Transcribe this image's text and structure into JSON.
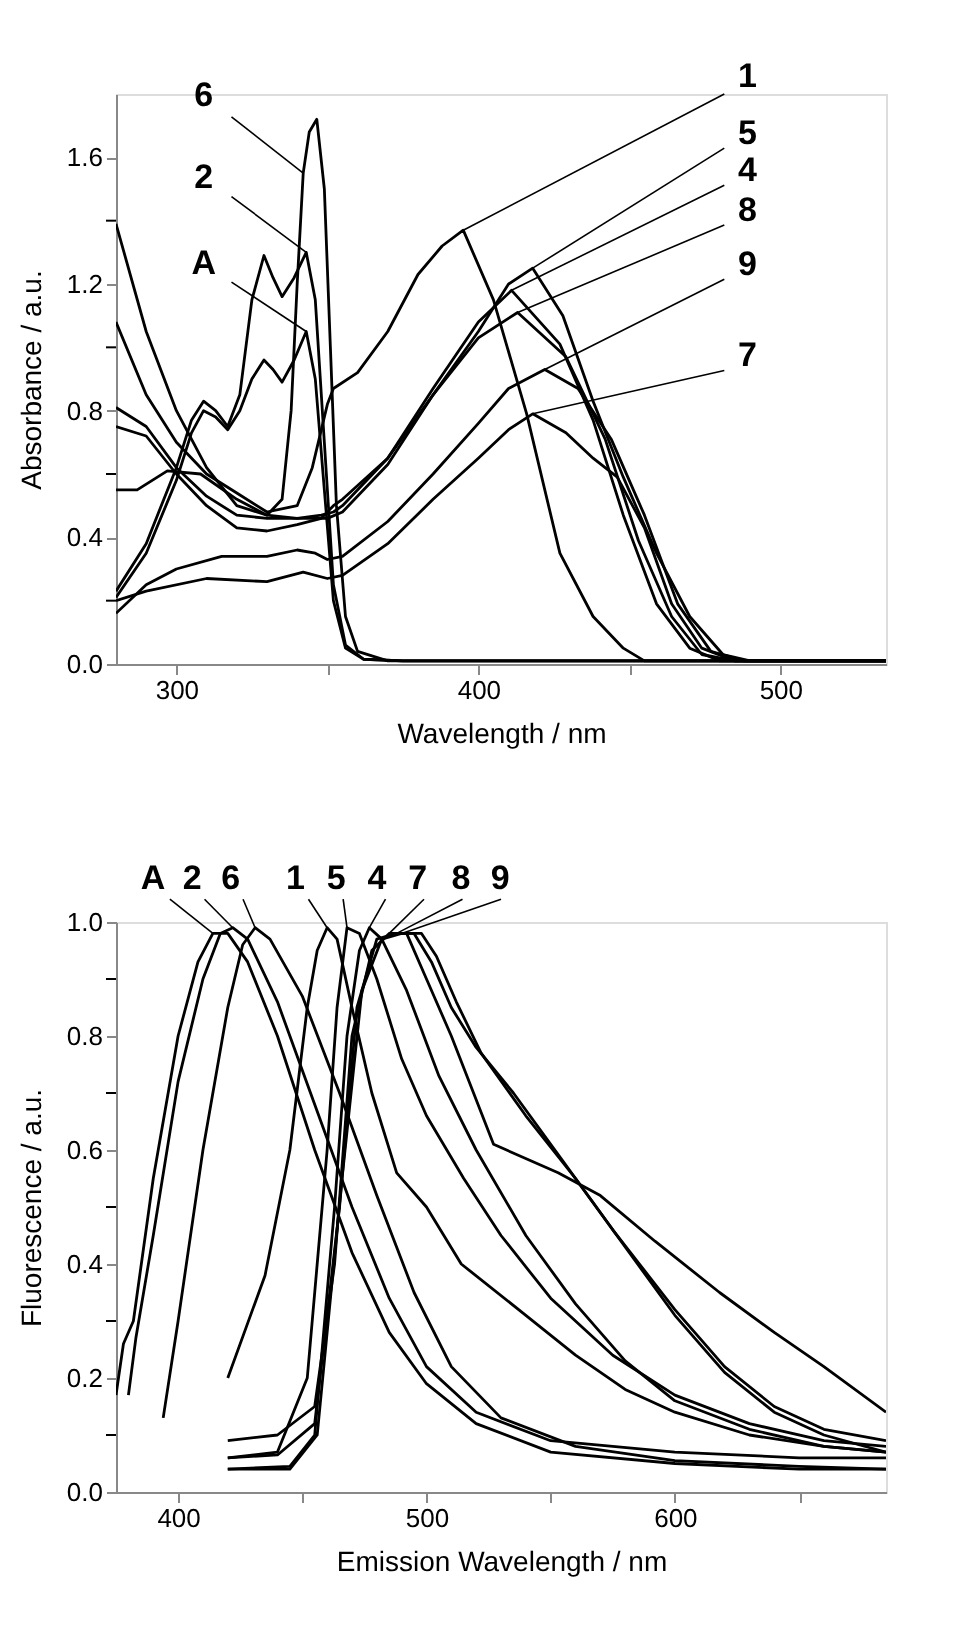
{
  "chart_data": [
    {
      "type": "line",
      "xlabel": "Wavelength / nm",
      "ylabel": "Absorbance / a.u.",
      "xlim": [
        280,
        535
      ],
      "ylim": [
        0,
        1.8
      ],
      "xticks": [
        300,
        {
          "value": 350,
          "label": null
        },
        400,
        {
          "value": 450,
          "label": null
        },
        500
      ],
      "yticks": [
        {
          "value": 0,
          "label": "0.0"
        },
        {
          "value": 0.2,
          "label": null
        },
        0.4,
        {
          "value": 0.6,
          "label": null
        },
        0.8,
        {
          "value": 1.0,
          "label": null
        },
        1.2,
        {
          "value": 1.4,
          "label": null
        },
        1.6
      ],
      "grid": false,
      "legend": false,
      "line_style": "solid",
      "series": [
        {
          "name": "6",
          "color": "#000000",
          "x": [
            280,
            290,
            300,
            310,
            320,
            330,
            335,
            338,
            340,
            342,
            344,
            346.5,
            349,
            351,
            353,
            356,
            360,
            370,
            535
          ],
          "values": [
            1.39,
            1.05,
            0.8,
            0.62,
            0.5,
            0.47,
            0.52,
            0.8,
            1.2,
            1.55,
            1.68,
            1.72,
            1.5,
            1.0,
            0.5,
            0.15,
            0.04,
            0.01,
            0.01
          ]
        },
        {
          "name": "2",
          "color": "#000000",
          "x": [
            280,
            290,
            300,
            305,
            309,
            313,
            317,
            321,
            325,
            329,
            332,
            335,
            339,
            343,
            346,
            349,
            352,
            356,
            362,
            375,
            535
          ],
          "values": [
            0.23,
            0.38,
            0.62,
            0.77,
            0.83,
            0.8,
            0.75,
            0.85,
            1.15,
            1.29,
            1.22,
            1.16,
            1.22,
            1.3,
            1.15,
            0.7,
            0.25,
            0.06,
            0.015,
            0.01,
            0.01
          ]
        },
        {
          "name": "A",
          "color": "#000000",
          "x": [
            280,
            290,
            300,
            305,
            309,
            313,
            317,
            321,
            325,
            329,
            332,
            335,
            339,
            343,
            346,
            349,
            352,
            356,
            362,
            375,
            535
          ],
          "values": [
            0.21,
            0.35,
            0.58,
            0.73,
            0.8,
            0.78,
            0.74,
            0.8,
            0.9,
            0.96,
            0.93,
            0.89,
            0.96,
            1.05,
            0.9,
            0.55,
            0.2,
            0.05,
            0.015,
            0.01,
            0.01
          ]
        },
        {
          "name": "1",
          "color": "#000000",
          "x": [
            280,
            290,
            300,
            310,
            320,
            330,
            340,
            345,
            350,
            352,
            360,
            370,
            380,
            388,
            395,
            405,
            416,
            427,
            438,
            448,
            455,
            535
          ],
          "values": [
            1.08,
            0.85,
            0.7,
            0.6,
            0.54,
            0.48,
            0.5,
            0.62,
            0.82,
            0.87,
            0.92,
            1.05,
            1.23,
            1.32,
            1.37,
            1.15,
            0.79,
            0.35,
            0.15,
            0.05,
            0.01,
            0.01
          ]
        },
        {
          "name": "5",
          "color": "#000000",
          "x": [
            280,
            290,
            300,
            310,
            320,
            330,
            340,
            348,
            352,
            355,
            370,
            385,
            400,
            410,
            418,
            428,
            438,
            448,
            459,
            470,
            481,
            490,
            535
          ],
          "values": [
            0.75,
            0.72,
            0.6,
            0.5,
            0.43,
            0.42,
            0.44,
            0.46,
            0.5,
            0.52,
            0.65,
            0.85,
            1.05,
            1.2,
            1.25,
            1.1,
            0.83,
            0.59,
            0.35,
            0.15,
            0.03,
            0.01,
            0.01
          ]
        },
        {
          "name": "4",
          "color": "#000000",
          "x": [
            280,
            290,
            300,
            310,
            320,
            330,
            340,
            348,
            352,
            355,
            370,
            385,
            400,
            411,
            427,
            438,
            448,
            459,
            470,
            480,
            535
          ],
          "values": [
            0.81,
            0.75,
            0.62,
            0.53,
            0.47,
            0.46,
            0.46,
            0.47,
            0.48,
            0.5,
            0.65,
            0.87,
            1.08,
            1.18,
            1.01,
            0.77,
            0.47,
            0.19,
            0.05,
            0.01,
            0.01
          ]
        },
        {
          "name": "8",
          "color": "#000000",
          "x": [
            280,
            287,
            297,
            308,
            320,
            330,
            340,
            350,
            355,
            370,
            385,
            400,
            413,
            429,
            442,
            453,
            464,
            474,
            485,
            535
          ],
          "values": [
            0.55,
            0.55,
            0.61,
            0.6,
            0.52,
            0.47,
            0.46,
            0.46,
            0.48,
            0.63,
            0.85,
            1.03,
            1.11,
            0.97,
            0.71,
            0.39,
            0.15,
            0.03,
            0.01,
            0.01
          ]
        },
        {
          "name": "9",
          "color": "#000000",
          "x": [
            280,
            290,
            300,
            315,
            330,
            340,
            346,
            350,
            355,
            370,
            385,
            400,
            410,
            422,
            433,
            444,
            455,
            466,
            477,
            488,
            535
          ],
          "values": [
            0.16,
            0.25,
            0.3,
            0.34,
            0.34,
            0.36,
            0.35,
            0.33,
            0.34,
            0.45,
            0.6,
            0.76,
            0.87,
            0.93,
            0.87,
            0.71,
            0.47,
            0.19,
            0.04,
            0.01,
            0.01
          ]
        },
        {
          "name": "7",
          "color": "#000000",
          "x": [
            280,
            290,
            310,
            330,
            342,
            350,
            355,
            370,
            385,
            400,
            410,
            418,
            429,
            438,
            446,
            455,
            464,
            474,
            485,
            535
          ],
          "values": [
            0.2,
            0.23,
            0.27,
            0.26,
            0.29,
            0.27,
            0.28,
            0.38,
            0.52,
            0.65,
            0.74,
            0.79,
            0.73,
            0.65,
            0.59,
            0.43,
            0.19,
            0.05,
            0.01,
            0.01
          ]
        }
      ]
    },
    {
      "type": "line",
      "xlabel": "Emission Wavelength / nm",
      "ylabel": "Fluorescence / a.u.",
      "xlim": [
        375,
        685
      ],
      "ylim": [
        0,
        1.0
      ],
      "xticks": [
        400,
        {
          "value": 450,
          "label": null
        },
        500,
        {
          "value": 550,
          "label": null
        },
        600,
        {
          "value": 650,
          "label": null
        }
      ],
      "yticks": [
        {
          "value": 0,
          "label": "0.0"
        },
        {
          "value": 0.1,
          "label": null
        },
        0.2,
        {
          "value": 0.3,
          "label": null
        },
        0.4,
        {
          "value": 0.5,
          "label": null
        },
        0.6,
        {
          "value": 0.7,
          "label": null
        },
        0.8,
        {
          "value": 0.9,
          "label": null
        },
        {
          "value": 1.0,
          "label": "1.0"
        }
      ],
      "grid": false,
      "legend": false,
      "line_style": "solid",
      "series": [
        {
          "name": "A",
          "color": "#000000",
          "x": [
            375,
            378,
            382,
            390,
            400,
            408,
            414,
            420,
            428,
            440,
            455,
            470,
            485,
            500,
            520,
            550,
            600,
            650,
            685
          ],
          "values": [
            0.17,
            0.26,
            0.3,
            0.55,
            0.8,
            0.93,
            0.98,
            0.98,
            0.93,
            0.8,
            0.6,
            0.42,
            0.28,
            0.19,
            0.12,
            0.07,
            0.05,
            0.04,
            0.04
          ]
        },
        {
          "name": "2",
          "color": "#000000",
          "x": [
            380,
            383,
            390,
            400,
            410,
            417,
            422,
            428,
            440,
            455,
            470,
            485,
            500,
            520,
            550,
            600,
            650,
            685
          ],
          "values": [
            0.17,
            0.27,
            0.45,
            0.72,
            0.9,
            0.98,
            0.99,
            0.97,
            0.86,
            0.68,
            0.5,
            0.34,
            0.22,
            0.14,
            0.09,
            0.07,
            0.06,
            0.06
          ]
        },
        {
          "name": "6",
          "color": "#000000",
          "x": [
            394,
            400,
            410,
            420,
            426,
            431,
            437,
            450,
            465,
            480,
            495,
            510,
            530,
            560,
            600,
            650,
            685
          ],
          "values": [
            0.13,
            0.3,
            0.6,
            0.85,
            0.96,
            0.99,
            0.97,
            0.87,
            0.7,
            0.52,
            0.35,
            0.22,
            0.13,
            0.08,
            0.055,
            0.045,
            0.04
          ]
        },
        {
          "name": "1",
          "color": "#000000",
          "x": [
            420,
            435,
            445,
            452,
            456,
            460,
            464,
            470,
            478,
            488,
            500,
            514,
            540,
            560,
            580,
            600,
            630,
            660,
            685
          ],
          "values": [
            0.2,
            0.38,
            0.6,
            0.85,
            0.95,
            0.99,
            0.97,
            0.85,
            0.7,
            0.56,
            0.5,
            0.4,
            0.31,
            0.24,
            0.18,
            0.14,
            0.1,
            0.08,
            0.07
          ]
        },
        {
          "name": "5",
          "color": "#000000",
          "x": [
            420,
            440,
            452,
            460,
            464,
            468,
            473,
            480,
            490,
            500,
            515,
            530,
            550,
            575,
            600,
            630,
            660,
            685
          ],
          "values": [
            0.06,
            0.07,
            0.2,
            0.6,
            0.85,
            0.99,
            0.98,
            0.9,
            0.76,
            0.66,
            0.55,
            0.45,
            0.34,
            0.24,
            0.17,
            0.12,
            0.09,
            0.08
          ]
        },
        {
          "name": "4",
          "color": "#000000",
          "x": [
            420,
            445,
            455,
            463,
            468,
            473,
            477,
            482,
            492,
            505,
            520,
            540,
            560,
            580,
            600,
            630,
            660,
            685
          ],
          "values": [
            0.04,
            0.045,
            0.1,
            0.5,
            0.8,
            0.95,
            0.99,
            0.97,
            0.88,
            0.73,
            0.6,
            0.45,
            0.33,
            0.23,
            0.16,
            0.11,
            0.08,
            0.07
          ]
        },
        {
          "name": "7",
          "color": "#000000",
          "x": [
            420,
            440,
            455,
            463,
            470,
            478,
            485,
            492,
            500,
            510,
            527,
            553,
            570,
            592,
            618,
            640,
            660,
            685
          ],
          "values": [
            0.09,
            0.1,
            0.15,
            0.4,
            0.8,
            0.95,
            0.98,
            0.98,
            0.9,
            0.8,
            0.61,
            0.56,
            0.52,
            0.44,
            0.35,
            0.28,
            0.22,
            0.14
          ]
        },
        {
          "name": "8",
          "color": "#000000",
          "x": [
            420,
            440,
            455,
            465,
            472,
            480,
            488,
            495,
            502,
            510,
            520,
            535,
            555,
            575,
            600,
            620,
            640,
            660,
            685
          ],
          "values": [
            0.06,
            0.065,
            0.12,
            0.5,
            0.85,
            0.97,
            0.98,
            0.98,
            0.93,
            0.85,
            0.78,
            0.7,
            0.58,
            0.46,
            0.32,
            0.22,
            0.15,
            0.11,
            0.09
          ]
        },
        {
          "name": "9",
          "color": "#000000",
          "x": [
            420,
            445,
            456,
            466,
            474,
            482,
            490,
            498,
            504,
            512,
            522,
            540,
            560,
            580,
            600,
            620,
            640,
            660,
            685
          ],
          "values": [
            0.04,
            0.04,
            0.1,
            0.55,
            0.88,
            0.97,
            0.98,
            0.98,
            0.94,
            0.86,
            0.77,
            0.66,
            0.55,
            0.43,
            0.31,
            0.21,
            0.14,
            0.1,
            0.07
          ]
        }
      ]
    }
  ]
}
